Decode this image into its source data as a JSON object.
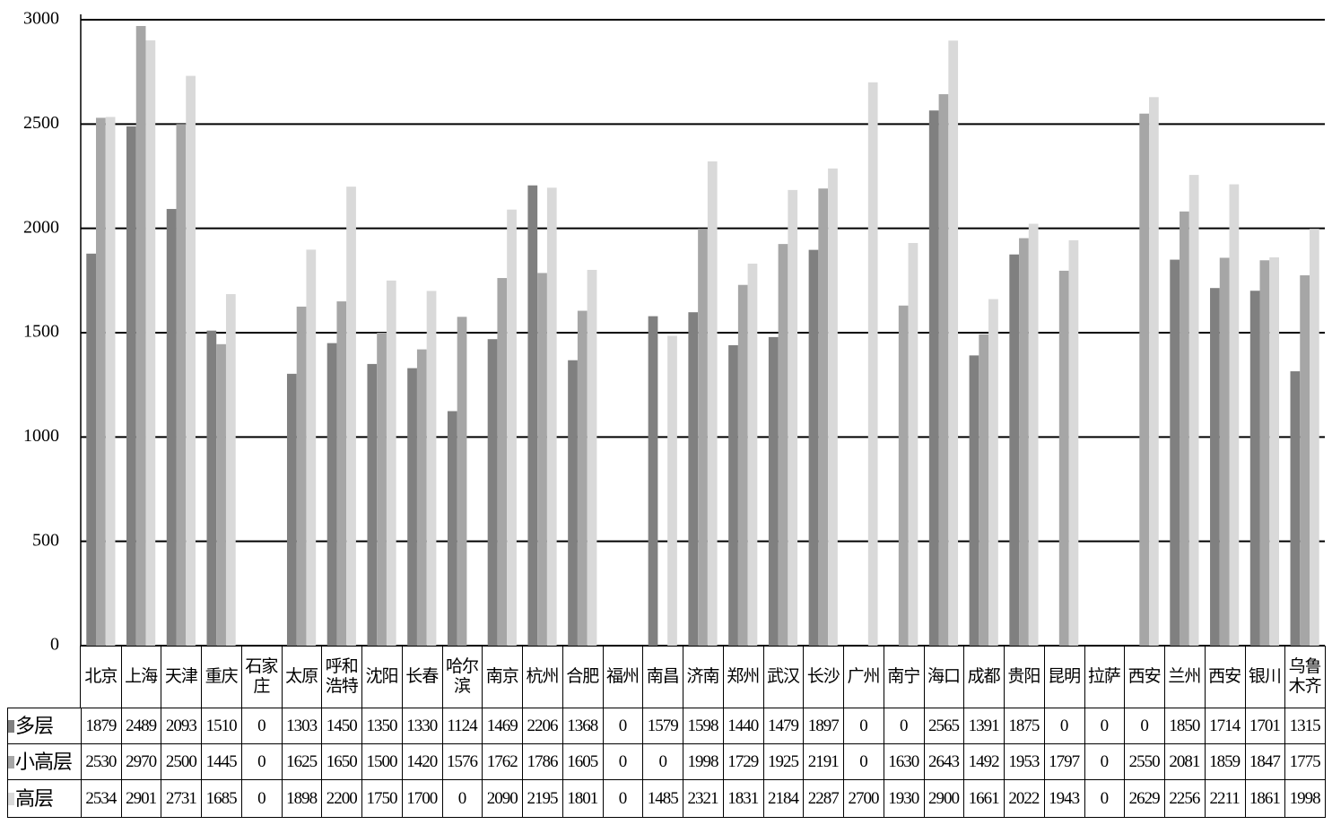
{
  "chart_data": {
    "type": "bar",
    "categories": [
      "北京",
      "上海",
      "天津",
      "重庆",
      "石家庄",
      "太原",
      "呼和浩特",
      "沈阳",
      "长春",
      "哈尔滨",
      "南京",
      "杭州",
      "合肥",
      "福州",
      "南昌",
      "济南",
      "郑州",
      "武汉",
      "长沙",
      "广州",
      "南宁",
      "海口",
      "成都",
      "贵阳",
      "昆明",
      "拉萨",
      "西安",
      "兰州",
      "西安",
      "银川",
      "乌鲁木齐"
    ],
    "series": [
      {
        "name": "多层",
        "color": "#808080",
        "values": [
          1879,
          2489,
          2093,
          1510,
          0,
          1303,
          1450,
          1350,
          1330,
          1124,
          1469,
          2206,
          1368,
          0,
          1579,
          1598,
          1440,
          1479,
          1897,
          0,
          0,
          2565,
          1391,
          1875,
          0,
          0,
          0,
          1850,
          1714,
          1701,
          1315
        ]
      },
      {
        "name": "小高层",
        "color": "#a6a6a6",
        "values": [
          2530,
          2970,
          2500,
          1445,
          0,
          1625,
          1650,
          1500,
          1420,
          1576,
          1762,
          1786,
          1605,
          0,
          0,
          1998,
          1729,
          1925,
          2191,
          0,
          1630,
          2643,
          1492,
          1953,
          1797,
          0,
          2550,
          2081,
          1859,
          1847,
          1775
        ]
      },
      {
        "name": "高层",
        "color": "#d9d9d9",
        "values": [
          2534,
          2901,
          2731,
          1685,
          0,
          1898,
          2200,
          1750,
          1700,
          0,
          2090,
          2195,
          1801,
          0,
          1485,
          2321,
          1831,
          2184,
          2287,
          2700,
          1930,
          2900,
          1661,
          2022,
          1943,
          0,
          2629,
          2256,
          2211,
          1861,
          1998
        ]
      }
    ],
    "ylim": [
      0,
      3000
    ],
    "yticks": [
      0,
      500,
      1000,
      1500,
      2000,
      2500,
      3000
    ],
    "grid": true
  }
}
